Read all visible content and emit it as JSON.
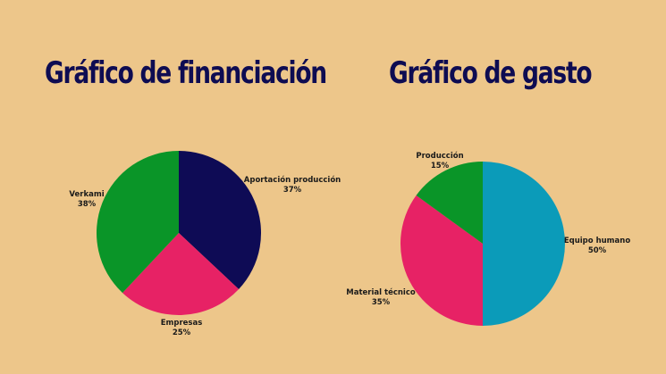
{
  "chart_data": [
    {
      "type": "pie",
      "title": "Gráfico de financiación",
      "categories": [
        "Aportación producción",
        "Empresas",
        "Verkami"
      ],
      "values": [
        37,
        25,
        38
      ],
      "value_labels": [
        "37%",
        "25%",
        "38%"
      ],
      "colors": [
        "#0E0B55",
        "#E72265",
        "#0A9528"
      ]
    },
    {
      "type": "pie",
      "title": "Gráfico de gasto",
      "categories": [
        "Equipo humano",
        "Material técnico",
        "Producción"
      ],
      "values": [
        50,
        35,
        15
      ],
      "value_labels": [
        "50%",
        "35%",
        "15%"
      ],
      "colors": [
        "#0B9BB9",
        "#E72265",
        "#0A9528"
      ]
    }
  ]
}
